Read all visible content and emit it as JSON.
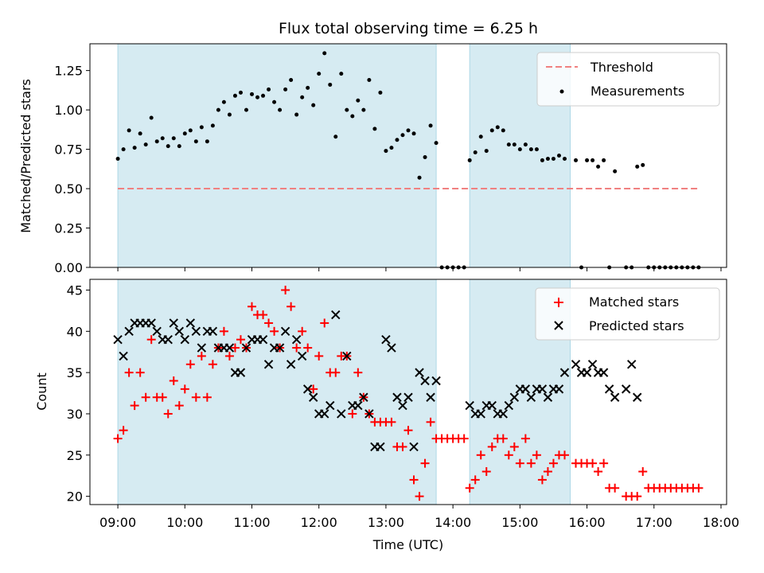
{
  "chart_data": [
    {
      "type": "scatter",
      "title": "Flux total observing time = 6.25 h",
      "ylabel": "Matched/Predicted stars",
      "ylim": [
        0,
        1.42
      ],
      "yticks": [
        "0.00",
        "0.25",
        "0.50",
        "0.75",
        "1.00",
        "1.25"
      ],
      "xlim": [
        "08:35",
        "18:05"
      ],
      "shaded_intervals": [
        [
          "09:00",
          "13:45"
        ],
        [
          "14:15",
          "15:45"
        ]
      ],
      "colors": {
        "shade": "#add8e6",
        "threshold": "#f08080",
        "measurements": "#000000"
      },
      "legend": {
        "placement": "top-right",
        "entries": [
          "Threshold",
          "Measurements"
        ]
      },
      "threshold": {
        "name": "Threshold",
        "y": 0.5,
        "x": [
          "09:00",
          "17:40"
        ]
      },
      "series": [
        {
          "name": "Measurements",
          "x": [
            "09:00",
            "09:05",
            "09:10",
            "09:15",
            "09:20",
            "09:25",
            "09:30",
            "09:35",
            "09:40",
            "09:45",
            "09:50",
            "09:55",
            "10:00",
            "10:05",
            "10:10",
            "10:15",
            "10:20",
            "10:25",
            "10:30",
            "10:35",
            "10:40",
            "10:45",
            "10:50",
            "10:55",
            "11:00",
            "11:05",
            "11:10",
            "11:15",
            "11:20",
            "11:25",
            "11:30",
            "11:35",
            "11:40",
            "11:45",
            "11:50",
            "11:55",
            "12:00",
            "12:05",
            "12:10",
            "12:15",
            "12:20",
            "12:25",
            "12:30",
            "12:35",
            "12:40",
            "12:45",
            "12:50",
            "12:55",
            "13:00",
            "13:05",
            "13:10",
            "13:15",
            "13:20",
            "13:25",
            "13:30",
            "13:35",
            "13:40",
            "13:45",
            "13:50",
            "13:55",
            "14:00",
            "14:05",
            "14:10",
            "14:15",
            "14:20",
            "14:25",
            "14:30",
            "14:35",
            "14:40",
            "14:45",
            "14:50",
            "14:55",
            "15:00",
            "15:05",
            "15:10",
            "15:15",
            "15:20",
            "15:25",
            "15:30",
            "15:35",
            "15:40",
            "15:50",
            "15:55",
            "16:00",
            "16:05",
            "16:10",
            "16:15",
            "16:20",
            "16:25",
            "16:35",
            "16:40",
            "16:45",
            "16:50",
            "16:55",
            "17:00",
            "17:05",
            "17:10",
            "17:15",
            "17:20",
            "17:25",
            "17:30",
            "17:35",
            "17:40"
          ],
          "y": [
            0.69,
            0.75,
            0.87,
            0.76,
            0.85,
            0.78,
            0.95,
            0.8,
            0.82,
            0.77,
            0.82,
            0.77,
            0.85,
            0.87,
            0.8,
            0.89,
            0.8,
            0.9,
            1.0,
            1.05,
            0.97,
            1.09,
            1.11,
            1.0,
            1.1,
            1.08,
            1.09,
            1.13,
            1.05,
            1.0,
            1.13,
            1.19,
            0.97,
            1.08,
            1.14,
            1.03,
            1.23,
            1.36,
            1.16,
            0.83,
            1.23,
            1.0,
            0.96,
            1.06,
            1.0,
            1.19,
            0.88,
            1.11,
            0.74,
            0.76,
            0.81,
            0.84,
            0.87,
            0.85,
            0.57,
            0.7,
            0.9,
            0.79,
            0,
            0,
            0,
            0,
            0,
            0.68,
            0.73,
            0.83,
            0.74,
            0.87,
            0.89,
            0.87,
            0.78,
            0.78,
            0.75,
            0.78,
            0.75,
            0.75,
            0.68,
            0.69,
            0.69,
            0.71,
            0.69,
            0.68,
            0,
            0.68,
            0.68,
            0.64,
            0.68,
            0,
            0.61,
            0,
            0,
            0.64,
            0.65,
            0,
            0,
            0,
            0,
            0,
            0,
            0,
            0,
            0,
            0
          ]
        }
      ]
    },
    {
      "type": "scatter",
      "xlabel": "Time (UTC)",
      "ylabel": "Count",
      "ylim": [
        19,
        46.3
      ],
      "yticks": [
        "20",
        "25",
        "30",
        "35",
        "40",
        "45"
      ],
      "xlim": [
        "08:35",
        "18:05"
      ],
      "xticks": [
        "09:00",
        "10:00",
        "11:00",
        "12:00",
        "13:00",
        "14:00",
        "15:00",
        "16:00",
        "17:00",
        "18:00"
      ],
      "shaded_intervals": [
        [
          "09:00",
          "13:45"
        ],
        [
          "14:15",
          "15:45"
        ]
      ],
      "colors": {
        "shade": "#add8e6",
        "matched": "#ff0000",
        "predicted": "#000000"
      },
      "legend": {
        "placement": "top-right",
        "entries": [
          "Matched stars",
          "Predicted stars"
        ]
      },
      "series": [
        {
          "name": "Matched stars",
          "x": [
            "09:00",
            "09:05",
            "09:10",
            "09:15",
            "09:20",
            "09:25",
            "09:30",
            "09:35",
            "09:40",
            "09:45",
            "09:50",
            "09:55",
            "10:00",
            "10:05",
            "10:10",
            "10:15",
            "10:20",
            "10:25",
            "10:30",
            "10:35",
            "10:40",
            "10:45",
            "10:50",
            "10:55",
            "11:00",
            "11:05",
            "11:10",
            "11:15",
            "11:20",
            "11:25",
            "11:30",
            "11:35",
            "11:40",
            "11:45",
            "11:50",
            "11:55",
            "12:00",
            "12:05",
            "12:10",
            "12:15",
            "12:20",
            "12:25",
            "12:30",
            "12:35",
            "12:40",
            "12:45",
            "12:50",
            "12:55",
            "13:00",
            "13:05",
            "13:10",
            "13:15",
            "13:20",
            "13:25",
            "13:30",
            "13:35",
            "13:40",
            "13:45",
            "13:50",
            "13:55",
            "14:00",
            "14:05",
            "14:10",
            "14:15",
            "14:20",
            "14:25",
            "14:30",
            "14:35",
            "14:40",
            "14:45",
            "14:50",
            "14:55",
            "15:00",
            "15:05",
            "15:10",
            "15:15",
            "15:20",
            "15:25",
            "15:30",
            "15:35",
            "15:40",
            "15:50",
            "15:55",
            "16:00",
            "16:05",
            "16:10",
            "16:15",
            "16:20",
            "16:25",
            "16:35",
            "16:40",
            "16:45",
            "16:50",
            "16:55",
            "17:00",
            "17:05",
            "17:10",
            "17:15",
            "17:20",
            "17:25",
            "17:30",
            "17:35",
            "17:40"
          ],
          "y": [
            27,
            28,
            35,
            31,
            35,
            32,
            39,
            32,
            32,
            30,
            34,
            31,
            33,
            36,
            32,
            37,
            32,
            36,
            38,
            40,
            37,
            38,
            39,
            38,
            43,
            42,
            42,
            41,
            40,
            38,
            45,
            43,
            38,
            40,
            38,
            33,
            37,
            41,
            35,
            35,
            37,
            37,
            30,
            35,
            32,
            30,
            29,
            29,
            29,
            29,
            26,
            26,
            28,
            22,
            20,
            24,
            29,
            27,
            27,
            27,
            27,
            27,
            27,
            21,
            22,
            25,
            23,
            26,
            27,
            27,
            25,
            26,
            24,
            27,
            24,
            25,
            22,
            23,
            24,
            25,
            25,
            24,
            24,
            24,
            24,
            23,
            24,
            21,
            21,
            20,
            20,
            20,
            23,
            21,
            21,
            21,
            21,
            21,
            21,
            21,
            21,
            21,
            21
          ]
        },
        {
          "name": "Predicted stars",
          "x": [
            "09:00",
            "09:05",
            "09:10",
            "09:15",
            "09:20",
            "09:25",
            "09:30",
            "09:35",
            "09:40",
            "09:45",
            "09:50",
            "09:55",
            "10:00",
            "10:05",
            "10:10",
            "10:15",
            "10:20",
            "10:25",
            "10:30",
            "10:35",
            "10:40",
            "10:45",
            "10:50",
            "10:55",
            "11:00",
            "11:05",
            "11:10",
            "11:15",
            "11:20",
            "11:25",
            "11:30",
            "11:35",
            "11:40",
            "11:45",
            "11:50",
            "11:55",
            "12:00",
            "12:05",
            "12:10",
            "12:15",
            "12:20",
            "12:25",
            "12:30",
            "12:35",
            "12:40",
            "12:45",
            "12:50",
            "12:55",
            "13:00",
            "13:05",
            "13:10",
            "13:15",
            "13:20",
            "13:25",
            "13:30",
            "13:35",
            "13:40",
            "13:45",
            "14:15",
            "14:20",
            "14:25",
            "14:30",
            "14:35",
            "14:40",
            "14:45",
            "14:50",
            "14:55",
            "15:00",
            "15:05",
            "15:10",
            "15:15",
            "15:20",
            "15:25",
            "15:30",
            "15:35",
            "15:40",
            "15:50",
            "15:55",
            "16:00",
            "16:05",
            "16:10",
            "16:15",
            "16:20",
            "16:25",
            "16:35",
            "16:40",
            "16:45"
          ],
          "y": [
            39,
            37,
            40,
            41,
            41,
            41,
            41,
            40,
            39,
            39,
            41,
            40,
            39,
            41,
            40,
            38,
            40,
            40,
            38,
            38,
            38,
            35,
            35,
            38,
            39,
            39,
            39,
            36,
            38,
            38,
            40,
            36,
            39,
            37,
            33,
            32,
            30,
            30,
            31,
            42,
            30,
            37,
            31,
            31,
            32,
            30,
            26,
            26,
            39,
            38,
            32,
            31,
            32,
            26,
            35,
            34,
            32,
            34,
            31,
            30,
            30,
            31,
            31,
            30,
            30,
            31,
            32,
            33,
            33,
            32,
            33,
            33,
            32,
            33,
            33,
            35,
            36,
            35,
            35,
            36,
            35,
            35,
            33,
            32,
            33,
            36,
            32
          ]
        }
      ]
    }
  ]
}
